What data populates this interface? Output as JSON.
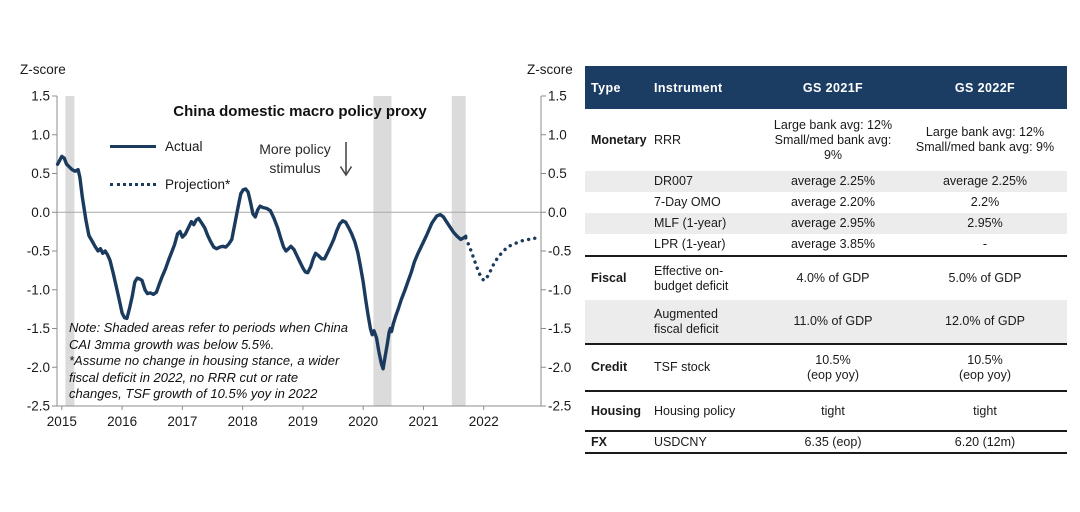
{
  "chart": {
    "y_axis_label_left": "Z-score",
    "y_axis_label_right": "Z-score",
    "title": "China domestic macro policy proxy",
    "legend": [
      {
        "label": "Actual",
        "style": "solid"
      },
      {
        "label": "Projection*",
        "style": "dotted"
      }
    ],
    "annotation_lines": [
      "More policy",
      "stimulus"
    ],
    "note_lines": [
      "Note: Shaded areas refer to periods when China",
      "CAI 3mma growth was below 5.5%.",
      "*Assume no change in housing stance, a wider",
      "fiscal deficit in 2022, no RRR cut or rate",
      "changes, TSF growth of 10.5% yoy in 2022"
    ]
  },
  "chart_data": {
    "type": "line",
    "title": "China domestic macro policy proxy",
    "xlabel": "",
    "ylabel": "Z-score",
    "xlim": [
      2014.92,
      2022.95
    ],
    "ylim": [
      -2.5,
      1.5
    ],
    "grid": "zero-line-only",
    "legend_position": "top-left-inside",
    "x_ticks": [
      "2015",
      "2016",
      "2017",
      "2018",
      "2019",
      "2020",
      "2021",
      "2022"
    ],
    "y_ticks": [
      "1.5",
      "1.0",
      "0.5",
      "0.0",
      "-0.5",
      "-1.0",
      "-1.5",
      "-2.0",
      "-2.5"
    ],
    "shaded_bands": [
      [
        2015.06,
        2015.21
      ],
      [
        2020.17,
        2020.47
      ],
      [
        2021.47,
        2021.7
      ]
    ],
    "shaded_bands_meaning": "periods when China CAI 3mma growth was below 5.5%",
    "series": [
      {
        "name": "Actual",
        "style": "solid",
        "points": [
          [
            2014.93,
            0.62
          ],
          [
            2015.0,
            0.72
          ],
          [
            2015.04,
            0.7
          ],
          [
            2015.08,
            0.62
          ],
          [
            2015.13,
            0.58
          ],
          [
            2015.17,
            0.55
          ],
          [
            2015.22,
            0.53
          ],
          [
            2015.27,
            0.55
          ],
          [
            2015.3,
            0.45
          ],
          [
            2015.34,
            0.2
          ],
          [
            2015.4,
            -0.1
          ],
          [
            2015.45,
            -0.3
          ],
          [
            2015.5,
            -0.37
          ],
          [
            2015.55,
            -0.44
          ],
          [
            2015.6,
            -0.5
          ],
          [
            2015.64,
            -0.47
          ],
          [
            2015.68,
            -0.53
          ],
          [
            2015.72,
            -0.5
          ],
          [
            2015.76,
            -0.55
          ],
          [
            2015.8,
            -0.62
          ],
          [
            2015.85,
            -0.78
          ],
          [
            2015.9,
            -0.95
          ],
          [
            2015.95,
            -1.12
          ],
          [
            2016.0,
            -1.3
          ],
          [
            2016.04,
            -1.36
          ],
          [
            2016.08,
            -1.37
          ],
          [
            2016.13,
            -1.22
          ],
          [
            2016.17,
            -1.08
          ],
          [
            2016.21,
            -0.9
          ],
          [
            2016.25,
            -0.85
          ],
          [
            2016.29,
            -0.86
          ],
          [
            2016.33,
            -0.88
          ],
          [
            2016.38,
            -1.0
          ],
          [
            2016.42,
            -1.05
          ],
          [
            2016.47,
            -1.04
          ],
          [
            2016.52,
            -1.06
          ],
          [
            2016.57,
            -1.03
          ],
          [
            2016.62,
            -0.92
          ],
          [
            2016.67,
            -0.82
          ],
          [
            2016.72,
            -0.73
          ],
          [
            2016.77,
            -0.62
          ],
          [
            2016.82,
            -0.52
          ],
          [
            2016.87,
            -0.42
          ],
          [
            2016.92,
            -0.28
          ],
          [
            2016.96,
            -0.25
          ],
          [
            2017.0,
            -0.32
          ],
          [
            2017.05,
            -0.28
          ],
          [
            2017.1,
            -0.2
          ],
          [
            2017.15,
            -0.12
          ],
          [
            2017.19,
            -0.16
          ],
          [
            2017.23,
            -0.1
          ],
          [
            2017.27,
            -0.08
          ],
          [
            2017.32,
            -0.14
          ],
          [
            2017.37,
            -0.2
          ],
          [
            2017.42,
            -0.3
          ],
          [
            2017.47,
            -0.38
          ],
          [
            2017.52,
            -0.45
          ],
          [
            2017.57,
            -0.47
          ],
          [
            2017.62,
            -0.45
          ],
          [
            2017.67,
            -0.44
          ],
          [
            2017.72,
            -0.45
          ],
          [
            2017.77,
            -0.41
          ],
          [
            2017.82,
            -0.35
          ],
          [
            2017.87,
            -0.15
          ],
          [
            2017.92,
            0.05
          ],
          [
            2017.97,
            0.24
          ],
          [
            2018.01,
            0.29
          ],
          [
            2018.05,
            0.3
          ],
          [
            2018.09,
            0.26
          ],
          [
            2018.13,
            0.13
          ],
          [
            2018.17,
            -0.02
          ],
          [
            2018.21,
            -0.06
          ],
          [
            2018.25,
            0.03
          ],
          [
            2018.29,
            0.08
          ],
          [
            2018.34,
            0.06
          ],
          [
            2018.4,
            0.05
          ],
          [
            2018.46,
            0.02
          ],
          [
            2018.52,
            -0.08
          ],
          [
            2018.58,
            -0.2
          ],
          [
            2018.63,
            -0.33
          ],
          [
            2018.68,
            -0.45
          ],
          [
            2018.72,
            -0.5
          ],
          [
            2018.76,
            -0.47
          ],
          [
            2018.8,
            -0.44
          ],
          [
            2018.85,
            -0.48
          ],
          [
            2018.9,
            -0.56
          ],
          [
            2018.95,
            -0.64
          ],
          [
            2019.0,
            -0.72
          ],
          [
            2019.04,
            -0.77
          ],
          [
            2019.08,
            -0.78
          ],
          [
            2019.13,
            -0.7
          ],
          [
            2019.17,
            -0.6
          ],
          [
            2019.21,
            -0.53
          ],
          [
            2019.26,
            -0.56
          ],
          [
            2019.31,
            -0.6
          ],
          [
            2019.36,
            -0.6
          ],
          [
            2019.41,
            -0.52
          ],
          [
            2019.46,
            -0.44
          ],
          [
            2019.51,
            -0.35
          ],
          [
            2019.56,
            -0.24
          ],
          [
            2019.61,
            -0.15
          ],
          [
            2019.66,
            -0.11
          ],
          [
            2019.71,
            -0.13
          ],
          [
            2019.76,
            -0.2
          ],
          [
            2019.81,
            -0.28
          ],
          [
            2019.86,
            -0.38
          ],
          [
            2019.91,
            -0.52
          ],
          [
            2019.95,
            -0.68
          ],
          [
            2020.0,
            -0.9
          ],
          [
            2020.04,
            -1.12
          ],
          [
            2020.08,
            -1.32
          ],
          [
            2020.12,
            -1.5
          ],
          [
            2020.15,
            -1.58
          ],
          [
            2020.18,
            -1.53
          ],
          [
            2020.22,
            -1.62
          ],
          [
            2020.26,
            -1.8
          ],
          [
            2020.3,
            -1.95
          ],
          [
            2020.33,
            -2.02
          ],
          [
            2020.36,
            -1.88
          ],
          [
            2020.4,
            -1.7
          ],
          [
            2020.43,
            -1.55
          ],
          [
            2020.45,
            -1.5
          ],
          [
            2020.47,
            -1.54
          ],
          [
            2020.5,
            -1.44
          ],
          [
            2020.54,
            -1.34
          ],
          [
            2020.58,
            -1.25
          ],
          [
            2020.63,
            -1.13
          ],
          [
            2020.69,
            -1.01
          ],
          [
            2020.74,
            -0.9
          ],
          [
            2020.8,
            -0.77
          ],
          [
            2020.85,
            -0.64
          ],
          [
            2020.91,
            -0.53
          ],
          [
            2020.97,
            -0.43
          ],
          [
            2021.05,
            -0.3
          ],
          [
            2021.14,
            -0.14
          ],
          [
            2021.22,
            -0.05
          ],
          [
            2021.28,
            -0.03
          ],
          [
            2021.33,
            -0.06
          ],
          [
            2021.38,
            -0.12
          ],
          [
            2021.44,
            -0.19
          ],
          [
            2021.5,
            -0.26
          ],
          [
            2021.56,
            -0.31
          ],
          [
            2021.62,
            -0.35
          ],
          [
            2021.67,
            -0.33
          ],
          [
            2021.7,
            -0.31
          ]
        ]
      },
      {
        "name": "Projection*",
        "style": "dotted",
        "points": [
          [
            2021.7,
            -0.33
          ],
          [
            2021.75,
            -0.42
          ],
          [
            2021.8,
            -0.52
          ],
          [
            2021.85,
            -0.63
          ],
          [
            2021.9,
            -0.74
          ],
          [
            2021.95,
            -0.83
          ],
          [
            2022.0,
            -0.88
          ],
          [
            2022.04,
            -0.86
          ],
          [
            2022.08,
            -0.8
          ],
          [
            2022.13,
            -0.73
          ],
          [
            2022.17,
            -0.66
          ],
          [
            2022.22,
            -0.6
          ],
          [
            2022.27,
            -0.55
          ],
          [
            2022.33,
            -0.5
          ],
          [
            2022.38,
            -0.46
          ],
          [
            2022.44,
            -0.43
          ],
          [
            2022.5,
            -0.41
          ],
          [
            2022.56,
            -0.39
          ],
          [
            2022.63,
            -0.37
          ],
          [
            2022.69,
            -0.36
          ],
          [
            2022.75,
            -0.35
          ],
          [
            2022.81,
            -0.33
          ],
          [
            2022.87,
            -0.34
          ],
          [
            2022.93,
            -0.32
          ]
        ]
      }
    ]
  },
  "table": {
    "columns": [
      "Type",
      "Instrument",
      "GS 2021F",
      "GS 2022F"
    ],
    "rows": [
      {
        "type": "Monetary",
        "instrument": [
          "RRR"
        ],
        "gs2021": [
          "Large bank avg: 12%",
          "Small/med bank avg: 9%"
        ],
        "gs2022": [
          "Large bank avg: 12%",
          "Small/med bank avg: 9%"
        ],
        "shaded": false,
        "rule_above": false
      },
      {
        "type": "",
        "instrument": [
          "DR007"
        ],
        "gs2021": [
          "average 2.25%"
        ],
        "gs2022": [
          "average 2.25%"
        ],
        "shaded": true,
        "rule_above": false
      },
      {
        "type": "",
        "instrument": [
          "7-Day OMO"
        ],
        "gs2021": [
          "average 2.20%"
        ],
        "gs2022": [
          "2.2%"
        ],
        "shaded": false,
        "rule_above": false
      },
      {
        "type": "",
        "instrument": [
          "MLF (1-year)"
        ],
        "gs2021": [
          "average 2.95%"
        ],
        "gs2022": [
          "2.95%"
        ],
        "shaded": true,
        "rule_above": false
      },
      {
        "type": "",
        "instrument": [
          "LPR (1-year)"
        ],
        "gs2021": [
          "average 3.85%"
        ],
        "gs2022": [
          "-"
        ],
        "shaded": false,
        "rule_above": false
      },
      {
        "type": "Fiscal",
        "instrument": [
          "Effective on-",
          "budget deficit"
        ],
        "gs2021": [
          "4.0% of GDP"
        ],
        "gs2022": [
          "5.0% of GDP"
        ],
        "shaded": false,
        "rule_above": true
      },
      {
        "type": "",
        "instrument": [
          "Augmented",
          "fiscal deficit"
        ],
        "gs2021": [
          "11.0% of GDP"
        ],
        "gs2022": [
          "12.0% of GDP"
        ],
        "shaded": true,
        "rule_above": false
      },
      {
        "type": "Credit",
        "instrument": [
          "TSF stock"
        ],
        "gs2021": [
          "10.5%",
          "(eop yoy)"
        ],
        "gs2022": [
          "10.5%",
          "(eop yoy)"
        ],
        "shaded": false,
        "rule_above": true
      },
      {
        "type": "Housing",
        "instrument": [
          "Housing policy"
        ],
        "gs2021": [
          "tight"
        ],
        "gs2022": [
          "tight"
        ],
        "shaded": false,
        "rule_above": true
      },
      {
        "type": "FX",
        "instrument": [
          "USDCNY"
        ],
        "gs2021": [
          "6.35 (eop)"
        ],
        "gs2022": [
          "6.20 (12m)"
        ],
        "shaded": false,
        "rule_above": true,
        "rule_below": true
      }
    ]
  },
  "colors": {
    "line_navy": "#1b3b5e",
    "header_bg": "#1c3d63",
    "header_text": "#ffffff",
    "row_stripe": "#ececec",
    "shaded_band": "#dbdbdb",
    "gridline": "#a9a9a9",
    "axis": "#8c8c8c",
    "rule": "#1a1a1a",
    "text": "#1a1a1a"
  }
}
